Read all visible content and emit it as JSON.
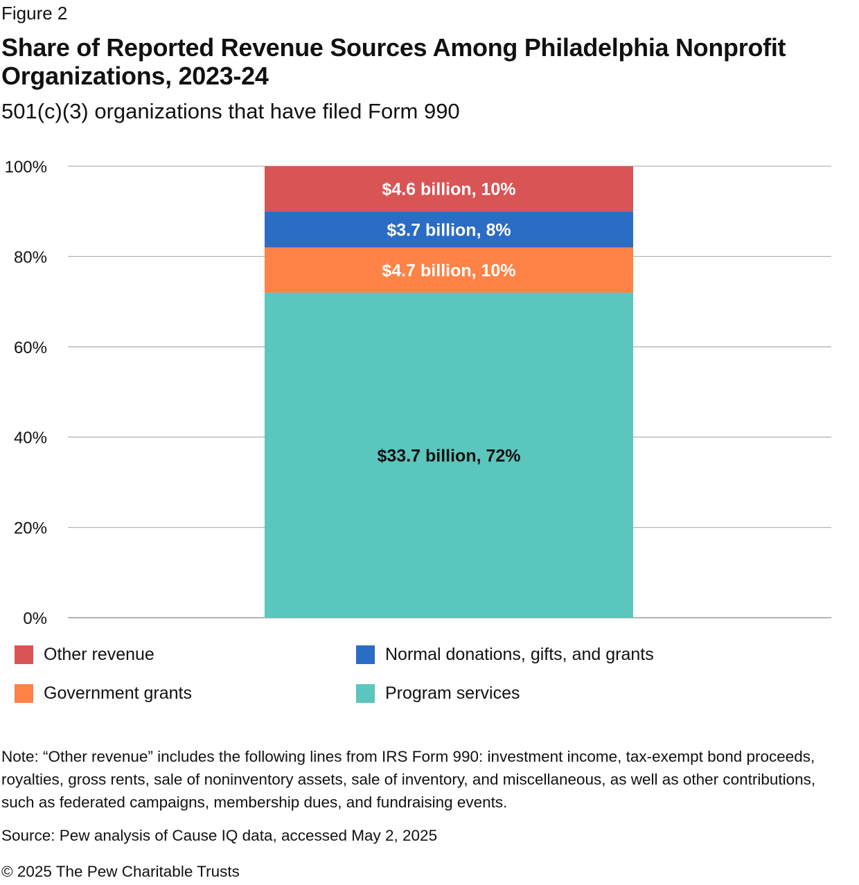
{
  "figure_label": "Figure 2",
  "note": "Note: “Other revenue” includes the following lines from IRS Form 990: investment income, tax-exempt bond proceeds, royalties, gross rents, sale of noninventory assets, sale of inventory, and miscellaneous, as well as other contributions, such as federated campaigns, membership dues, and fundraising events.",
  "source": "Source: Pew analysis of Cause IQ data, accessed May 2, 2025",
  "copyright": "© 2025 The Pew Charitable Trusts",
  "chart_data": {
    "type": "bar",
    "stacked": true,
    "title": "Share of Reported Revenue Sources Among Philadelphia Nonprofit Organizations, 2023-24",
    "subtitle": "501(c)(3) organizations that have filed Form 990",
    "xlabel": "",
    "ylabel": "",
    "ylim": [
      0,
      100
    ],
    "yticks": [
      "0%",
      "20%",
      "40%",
      "60%",
      "80%",
      "100%"
    ],
    "grid": true,
    "legend_position": "bottom",
    "categories": [
      ""
    ],
    "series": [
      {
        "name": "Program services",
        "values": [
          72
        ],
        "label": "$33.7 billion, 72%",
        "color": "#5BC6BD",
        "label_color": "#111111"
      },
      {
        "name": "Government grants",
        "values": [
          10
        ],
        "label": "$4.7 billion, 10%",
        "color": "#FF8247",
        "label_color": "#ffffff"
      },
      {
        "name": "Normal donations, gifts, and grants",
        "values": [
          8
        ],
        "label": "$3.7 billion, 8%",
        "color": "#2B6CC4",
        "label_color": "#ffffff"
      },
      {
        "name": "Other revenue",
        "values": [
          10
        ],
        "label": "$4.6 billion, 10%",
        "color": "#D95455",
        "label_color": "#ffffff"
      }
    ]
  }
}
